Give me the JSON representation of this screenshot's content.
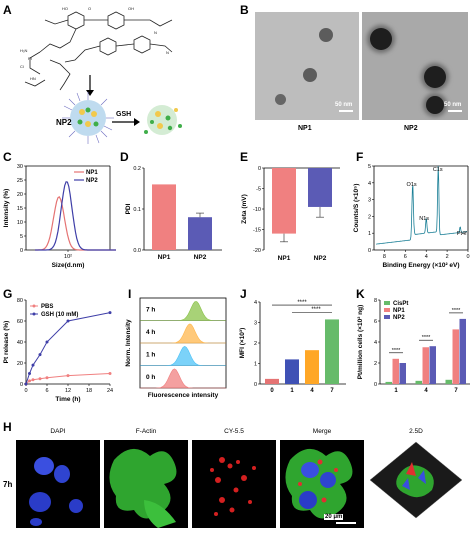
{
  "panels": {
    "A": {
      "label": "A",
      "np2_label": "NP2",
      "gsh_label": "GSH"
    },
    "B": {
      "label": "B",
      "img1_label": "NP1",
      "img2_label": "NP2",
      "scale1": "50 nm",
      "scale2": "50 nm"
    },
    "C": {
      "label": "C"
    },
    "D": {
      "label": "D"
    },
    "E": {
      "label": "E"
    },
    "F": {
      "label": "F"
    },
    "G": {
      "label": "G"
    },
    "I": {
      "label": "I",
      "times": [
        "7 h",
        "4 h",
        "1 h",
        "0 h"
      ]
    },
    "J": {
      "label": "J"
    },
    "K": {
      "label": "K"
    },
    "H": {
      "label": "H",
      "row_label": "7h",
      "channels": [
        "DAPI",
        "F-Actin",
        "CY-5.5",
        "Merge",
        "2.5D"
      ],
      "channel_colors": [
        "#3355ff",
        "#2db22d",
        "#e02020",
        "#000000",
        "#000000"
      ],
      "scale": "20 μm"
    }
  },
  "chart_data": [
    {
      "id": "C",
      "type": "line",
      "xlabel": "Size(d.nm)",
      "ylabel": "Intensity (%)",
      "yticks": [
        "0",
        "5",
        "10",
        "15",
        "20",
        "25",
        "30"
      ],
      "ylim": [
        0,
        30
      ],
      "xticks": [
        "10²"
      ],
      "xscale": "log",
      "legend_position": "top-right",
      "series": [
        {
          "name": "NP1",
          "color": "#e57373",
          "peak_x": 50,
          "peak_y": 19
        },
        {
          "name": "NP2",
          "color": "#3f3fa8",
          "peak_x": 90,
          "peak_y": 24.5
        }
      ]
    },
    {
      "id": "D",
      "type": "bar",
      "ylabel": "PDI",
      "categories": [
        "NP1",
        "NP2"
      ],
      "values": [
        0.16,
        0.08
      ],
      "errors": [
        0,
        0.01
      ],
      "colors": [
        "#f08080",
        "#5b5bb5"
      ],
      "ylim": [
        0,
        0.2
      ],
      "yticks": [
        "0.0",
        "0.1",
        "0.2"
      ]
    },
    {
      "id": "E",
      "type": "bar",
      "ylabel": "Zeta (mV)",
      "categories": [
        "NP1",
        "NP2"
      ],
      "values": [
        -16,
        -9.5
      ],
      "errors": [
        2,
        2.5
      ],
      "colors": [
        "#f08080",
        "#5b5bb5"
      ],
      "ylim": [
        -20,
        0
      ],
      "yticks": [
        "0",
        "-5",
        "-10",
        "-15",
        "-20"
      ]
    },
    {
      "id": "F",
      "type": "line",
      "ylabel": "Counts/S (×10⁵)",
      "xlabel": "Binding Energy (×10² eV)",
      "yticks": [
        "0",
        "1",
        "2",
        "3",
        "4",
        "5"
      ],
      "ylim": [
        0,
        5
      ],
      "xticks": [
        "8",
        "6",
        "4",
        "2",
        "0"
      ],
      "xlim": [
        9,
        0
      ],
      "peak_labels": [
        "O1s",
        "C1s",
        "N1s",
        "Pt4f"
      ]
    },
    {
      "id": "G",
      "type": "line",
      "ylabel": "Pt release (%)",
      "xlabel": "Time (h)",
      "xticks": [
        "0",
        "6",
        "12",
        "18",
        "24"
      ],
      "xlim": [
        0,
        24
      ],
      "yticks": [
        "0",
        "20",
        "40",
        "60",
        "80"
      ],
      "ylim": [
        0,
        80
      ],
      "legend_position": "top-left",
      "x": [
        0,
        1,
        2,
        4,
        6,
        12,
        24
      ],
      "series": [
        {
          "name": "PBS",
          "color": "#f08080",
          "values": [
            0,
            3,
            4,
            5,
            6,
            8,
            10
          ]
        },
        {
          "name": "GSH (10 mM)",
          "color": "#3f3fa8",
          "values": [
            0,
            10,
            18,
            28,
            40,
            60,
            68
          ]
        }
      ]
    },
    {
      "id": "I",
      "type": "area",
      "ylabel": "Norm. Intensity",
      "xlabel": "Fluorescence intensity",
      "series": [
        {
          "name": "7 h",
          "color": "#8bc34a",
          "peak": 0.65
        },
        {
          "name": "4 h",
          "color": "#ffb74d",
          "peak": 0.58
        },
        {
          "name": "1 h",
          "color": "#4fc3f7",
          "peak": 0.52
        },
        {
          "name": "0 h",
          "color": "#f08080",
          "peak": 0.4
        }
      ]
    },
    {
      "id": "J",
      "type": "bar",
      "ylabel": "MFI (×10³)",
      "categories": [
        "0",
        "1",
        "4",
        "7"
      ],
      "values": [
        0.25,
        1.2,
        1.65,
        3.15
      ],
      "colors": [
        "#e57373",
        "#3f51b5",
        "#ffa726",
        "#66bb6a"
      ],
      "ylim": [
        0,
        4
      ],
      "yticks": [
        "0",
        "1",
        "2",
        "3",
        "4"
      ],
      "significance": [
        "****",
        "****"
      ]
    },
    {
      "id": "K",
      "type": "bar",
      "ylabel": "Pt/million cells (×10² ng)",
      "categories": [
        "1",
        "4",
        "7"
      ],
      "series": [
        {
          "name": "CisPt",
          "color": "#66bb6a",
          "values": [
            0.2,
            0.3,
            0.4
          ]
        },
        {
          "name": "NP1",
          "color": "#f08080",
          "values": [
            2.4,
            3.5,
            5.2
          ]
        },
        {
          "name": "NP2",
          "color": "#5b5bb5",
          "values": [
            2.0,
            3.6,
            6.2
          ]
        }
      ],
      "ylim": [
        0,
        8
      ],
      "yticks": [
        "0",
        "2",
        "4",
        "6",
        "8"
      ],
      "legend_position": "top-left",
      "significance": [
        "****",
        "****",
        "****"
      ]
    }
  ]
}
